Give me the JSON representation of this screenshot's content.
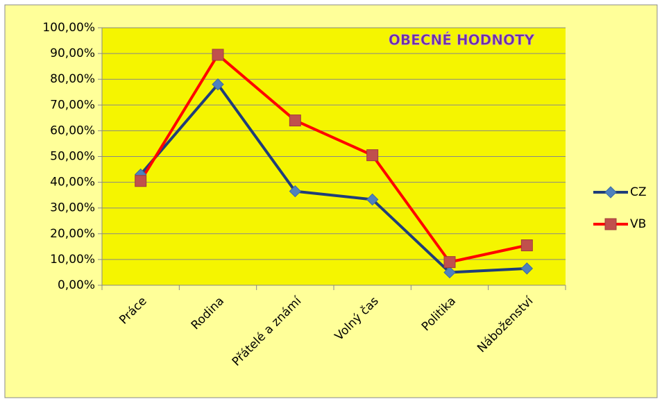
{
  "chart_data": {
    "type": "line",
    "title": "OBECNÉ HODNOTY",
    "categories": [
      "Práce",
      "Rodina",
      "Přátelé a známí",
      "Volný čas",
      "Politika",
      "Náboženství"
    ],
    "series": [
      {
        "name": "CZ",
        "color": "#1F3D7A",
        "marker_color": "#4F81BD",
        "marker": "diamond",
        "values": [
          43,
          78,
          36.5,
          33.3,
          5,
          6.5
        ]
      },
      {
        "name": "VB",
        "color": "#FF0000",
        "marker_color": "#C0504D",
        "marker": "square",
        "values": [
          40.5,
          89.5,
          64,
          50.5,
          9,
          15.5
        ]
      }
    ],
    "ylim": [
      0,
      100
    ],
    "yticks": [
      {
        "value": 0,
        "label": "0,00%"
      },
      {
        "value": 10,
        "label": "10,00%"
      },
      {
        "value": 20,
        "label": "20,00%"
      },
      {
        "value": 30,
        "label": "30,00%"
      },
      {
        "value": 40,
        "label": "40,00%"
      },
      {
        "value": 50,
        "label": "50,00%"
      },
      {
        "value": 60,
        "label": "60,00%"
      },
      {
        "value": 70,
        "label": "70,00%"
      },
      {
        "value": 80,
        "label": "80,00%"
      },
      {
        "value": 90,
        "label": "90,00%"
      },
      {
        "value": 100,
        "label": "100,00%"
      }
    ],
    "grid": true,
    "legend": "right"
  }
}
